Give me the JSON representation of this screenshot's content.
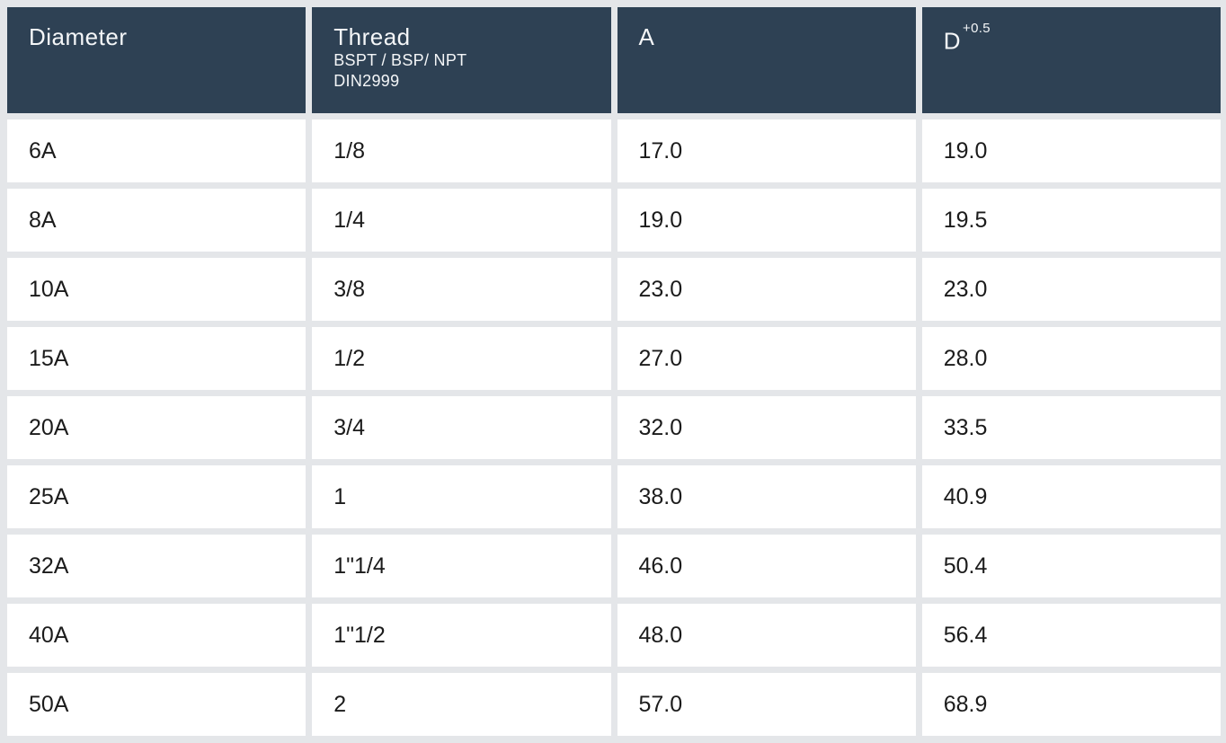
{
  "colors": {
    "header_bg": "#2e4154",
    "header_text": "#f4f6f8",
    "page_bg": "#e4e6e9",
    "cell_bg": "#ffffff",
    "body_text": "#1b1b1b"
  },
  "table": {
    "columns": [
      {
        "key": "diameter",
        "label": "Diameter"
      },
      {
        "key": "thread",
        "label": "Thread",
        "sublabel1": "BSPT / BSP/ NPT",
        "sublabel2": "DIN2999"
      },
      {
        "key": "a",
        "label": "A"
      },
      {
        "key": "d",
        "label": "D",
        "superscript": "+0.5"
      }
    ],
    "rows": [
      {
        "diameter": "6A",
        "thread": "1/8",
        "a": "17.0",
        "d": "19.0"
      },
      {
        "diameter": "8A",
        "thread": "1/4",
        "a": "19.0",
        "d": "19.5"
      },
      {
        "diameter": "10A",
        "thread": "3/8",
        "a": "23.0",
        "d": "23.0"
      },
      {
        "diameter": "15A",
        "thread": "1/2",
        "a": "27.0",
        "d": "28.0"
      },
      {
        "diameter": "20A",
        "thread": "3/4",
        "a": "32.0",
        "d": "33.5"
      },
      {
        "diameter": "25A",
        "thread": "1",
        "a": "38.0",
        "d": "40.9"
      },
      {
        "diameter": "32A",
        "thread": "1\"1/4",
        "a": "46.0",
        "d": "50.4"
      },
      {
        "diameter": "40A",
        "thread": "1\"1/2",
        "a": "48.0",
        "d": "56.4"
      },
      {
        "diameter": "50A",
        "thread": "2",
        "a": "57.0",
        "d": "68.9"
      }
    ]
  }
}
